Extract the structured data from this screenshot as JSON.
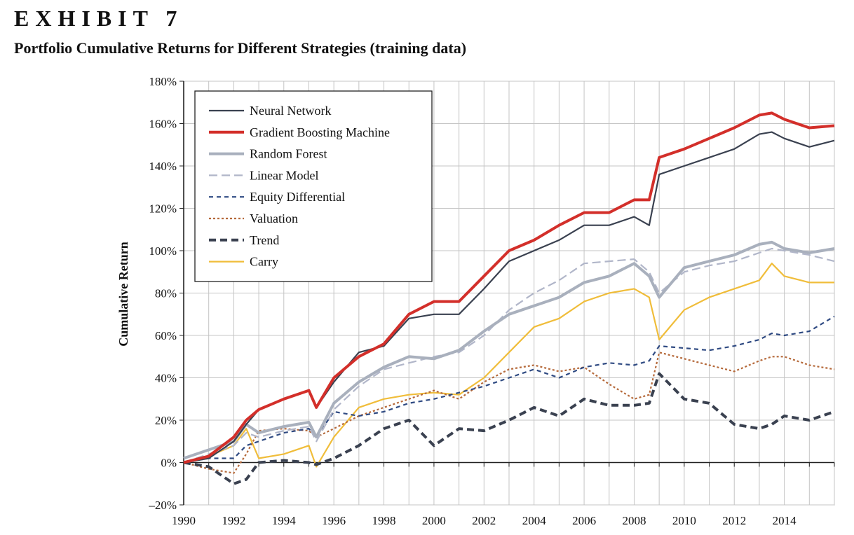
{
  "header": {
    "exhibit": "EXHIBIT 7",
    "subtitle": "Portfolio Cumulative Returns for Different Strategies (training data)"
  },
  "chart_data": {
    "type": "line",
    "title": "Portfolio Cumulative Returns for Different Strategies (training data)",
    "xlabel": "",
    "ylabel": "Cumulative Return",
    "xlim": [
      1990,
      2016
    ],
    "ylim": [
      -20,
      180
    ],
    "x_ticks": [
      "1990",
      "1992",
      "1994",
      "1996",
      "1998",
      "2000",
      "2002",
      "2004",
      "2006",
      "2008",
      "2010",
      "2012",
      "2014"
    ],
    "y_ticks": [
      "–20%",
      "0%",
      "20%",
      "40%",
      "60%",
      "80%",
      "100%",
      "120%",
      "140%",
      "160%",
      "180%"
    ],
    "grid": true,
    "legend_position": "top-left",
    "x": [
      1990,
      1991,
      1992,
      1992.5,
      1993,
      1994,
      1995,
      1995.3,
      1996,
      1997,
      1998,
      1999,
      2000,
      2001,
      2002,
      2003,
      2004,
      2005,
      2006,
      2007,
      2008,
      2008.6,
      2009,
      2010,
      2011,
      2012,
      2013,
      2013.5,
      2014,
      2015,
      2016
    ],
    "series": [
      {
        "name": "Neural Network",
        "color": "#3a4150",
        "width": 2.2,
        "dash": "",
        "values": [
          0,
          2,
          10,
          18,
          25,
          30,
          34,
          26,
          38,
          52,
          55,
          68,
          70,
          70,
          82,
          95,
          100,
          105,
          112,
          112,
          116,
          112,
          136,
          140,
          144,
          148,
          155,
          156,
          153,
          149,
          152
        ]
      },
      {
        "name": "Gradient Boosting Machine",
        "color": "#d32f2a",
        "width": 4,
        "dash": "",
        "values": [
          0,
          3,
          12,
          20,
          25,
          30,
          34,
          26,
          40,
          50,
          56,
          70,
          76,
          76,
          88,
          100,
          105,
          112,
          118,
          118,
          124,
          124,
          144,
          148,
          153,
          158,
          164,
          165,
          162,
          158,
          159
        ]
      },
      {
        "name": "Random Forest",
        "color": "#a9b0bd",
        "width": 4,
        "dash": "",
        "values": [
          2,
          6,
          10,
          18,
          14,
          17,
          19,
          12,
          28,
          38,
          45,
          50,
          49,
          53,
          62,
          70,
          74,
          78,
          85,
          88,
          94,
          88,
          78,
          92,
          95,
          98,
          103,
          104,
          101,
          99,
          101
        ]
      },
      {
        "name": "Linear Model",
        "color": "#b1b6c9",
        "width": 2.2,
        "dash": "12,6",
        "values": [
          0,
          4,
          8,
          14,
          12,
          15,
          17,
          10,
          25,
          36,
          44,
          47,
          50,
          52,
          60,
          72,
          80,
          86,
          94,
          95,
          96,
          90,
          80,
          90,
          93,
          95,
          99,
          101,
          100,
          98,
          95
        ]
      },
      {
        "name": "Equity Differential",
        "color": "#2f4a82",
        "width": 2.2,
        "dash": "6,5",
        "values": [
          0,
          2,
          2,
          8,
          10,
          14,
          16,
          12,
          24,
          22,
          24,
          28,
          30,
          33,
          36,
          40,
          44,
          40,
          45,
          47,
          46,
          48,
          55,
          54,
          53,
          55,
          58,
          61,
          60,
          62,
          69
        ]
      },
      {
        "name": "Valuation",
        "color": "#b5693a",
        "width": 2.2,
        "dash": "3,3",
        "values": [
          0,
          -3,
          -5,
          4,
          15,
          16,
          15,
          12,
          16,
          22,
          26,
          30,
          34,
          30,
          38,
          44,
          46,
          43,
          45,
          37,
          30,
          32,
          52,
          49,
          46,
          43,
          48,
          50,
          50,
          46,
          44
        ]
      },
      {
        "name": "Trend",
        "color": "#3a4150",
        "width": 4,
        "dash": "10,6",
        "values": [
          0,
          -2,
          -10,
          -8,
          0,
          1,
          0,
          -1,
          2,
          8,
          16,
          20,
          8,
          16,
          15,
          20,
          26,
          22,
          30,
          27,
          27,
          28,
          42,
          30,
          28,
          18,
          16,
          18,
          22,
          20,
          24
        ]
      },
      {
        "name": "Carry",
        "color": "#f0bd3a",
        "width": 2.2,
        "dash": "",
        "values": [
          0,
          3,
          8,
          16,
          2,
          4,
          8,
          -2,
          12,
          26,
          30,
          32,
          33,
          32,
          40,
          52,
          64,
          68,
          76,
          80,
          82,
          78,
          58,
          72,
          78,
          82,
          86,
          94,
          88,
          85,
          85
        ]
      }
    ]
  }
}
